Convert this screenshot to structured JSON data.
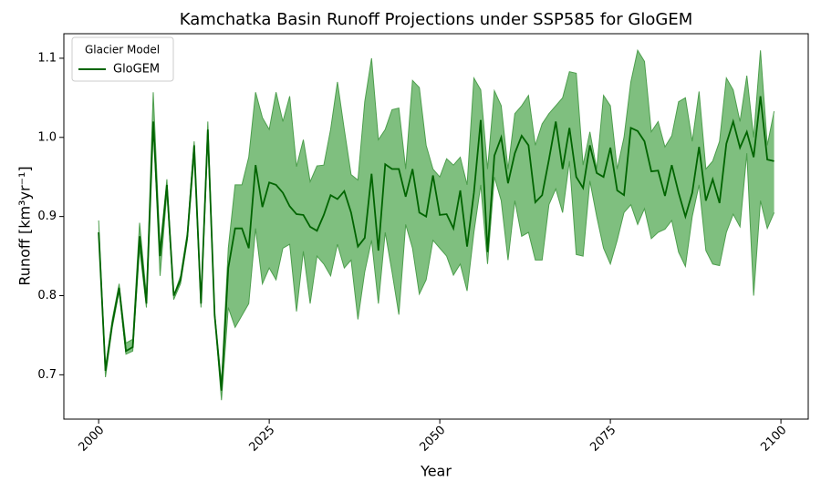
{
  "chart_data": {
    "type": "line_band",
    "title": "Kamchatka Basin Runoff Projections under SSP585 for GloGEM",
    "xlabel": "Year",
    "ylabel": "Runoff [km³yr⁻¹]",
    "legend_title": "Glacier Model",
    "legend_loc": "upper left",
    "xlim": [
      1994.9,
      2104
    ],
    "xticks": [
      2000,
      2025,
      2050,
      2075,
      2100
    ],
    "ylim": [
      0.644,
      1.131
    ],
    "yticks": [
      0.7,
      0.8,
      0.9,
      {
        "value": 1,
        "label": "1.0"
      },
      1.1
    ],
    "x": [
      2000,
      2001,
      2002,
      2003,
      2004,
      2005,
      2006,
      2007,
      2008,
      2009,
      2010,
      2011,
      2012,
      2013,
      2014,
      2015,
      2016,
      2017,
      2018,
      2019,
      2020,
      2021,
      2022,
      2023,
      2024,
      2025,
      2026,
      2027,
      2028,
      2029,
      2030,
      2031,
      2032,
      2033,
      2034,
      2035,
      2036,
      2037,
      2038,
      2039,
      2040,
      2041,
      2042,
      2043,
      2044,
      2045,
      2046,
      2047,
      2048,
      2049,
      2050,
      2051,
      2052,
      2053,
      2054,
      2055,
      2056,
      2057,
      2058,
      2059,
      2060,
      2061,
      2062,
      2063,
      2064,
      2065,
      2066,
      2067,
      2068,
      2069,
      2070,
      2071,
      2072,
      2073,
      2074,
      2075,
      2076,
      2077,
      2078,
      2079,
      2080,
      2081,
      2082,
      2083,
      2084,
      2085,
      2086,
      2087,
      2088,
      2089,
      2090,
      2091,
      2092,
      2093,
      2094,
      2095,
      2096,
      2097,
      2098,
      2099
    ],
    "series": [
      {
        "name": "GloGEM",
        "color": "#006400",
        "band_color": "#7fbf7f",
        "values": [
          0.88,
          0.705,
          0.765,
          0.81,
          0.73,
          0.735,
          0.875,
          0.79,
          1.02,
          0.85,
          0.94,
          0.8,
          0.82,
          0.875,
          0.99,
          0.79,
          1.01,
          0.775,
          0.68,
          0.835,
          0.885,
          0.885,
          0.86,
          0.965,
          0.912,
          0.943,
          0.94,
          0.93,
          0.913,
          0.903,
          0.902,
          0.887,
          0.882,
          0.902,
          0.927,
          0.922,
          0.932,
          0.905,
          0.862,
          0.873,
          0.954,
          0.857,
          0.966,
          0.96,
          0.96,
          0.925,
          0.96,
          0.905,
          0.9,
          0.952,
          0.902,
          0.903,
          0.885,
          0.933,
          0.862,
          0.93,
          1.022,
          0.855,
          0.977,
          1.0,
          0.942,
          0.98,
          1.002,
          0.99,
          0.918,
          0.927,
          0.972,
          1.02,
          0.96,
          1.012,
          0.95,
          0.936,
          0.99,
          0.955,
          0.95,
          0.987,
          0.933,
          0.927,
          1.012,
          1.008,
          0.995,
          0.957,
          0.958,
          0.926,
          0.965,
          0.93,
          0.9,
          0.93,
          0.988,
          0.92,
          0.947,
          0.917,
          0.992,
          1.02,
          0.987,
          1.007,
          0.975,
          1.052,
          0.972,
          0.97
        ],
        "upper": [
          0.895,
          0.71,
          0.77,
          0.815,
          0.74,
          0.745,
          0.892,
          0.8,
          1.057,
          0.86,
          0.947,
          0.8,
          0.825,
          0.88,
          0.995,
          0.79,
          1.02,
          0.78,
          0.69,
          0.86,
          0.94,
          0.94,
          0.975,
          1.057,
          1.025,
          1.01,
          1.057,
          1.02,
          1.052,
          0.963,
          0.997,
          0.944,
          0.964,
          0.965,
          1.01,
          1.07,
          1.01,
          0.953,
          0.946,
          1.045,
          1.1,
          0.997,
          1.01,
          1.035,
          1.037,
          0.96,
          1.072,
          1.063,
          0.99,
          0.96,
          0.95,
          0.973,
          0.965,
          0.975,
          0.94,
          1.075,
          1.06,
          0.96,
          1.059,
          1.04,
          0.96,
          1.03,
          1.04,
          1.053,
          0.99,
          1.017,
          1.03,
          1.04,
          1.05,
          1.083,
          1.081,
          0.965,
          1.007,
          0.96,
          1.053,
          1.04,
          0.96,
          1.0,
          1.07,
          1.11,
          1.096,
          1.007,
          1.02,
          0.988,
          1.002,
          1.045,
          1.05,
          0.995,
          1.058,
          0.96,
          0.97,
          0.995,
          1.075,
          1.06,
          1.02,
          1.078,
          1.0,
          1.11,
          0.99,
          1.033
        ],
        "lower": [
          0.88,
          0.697,
          0.76,
          0.805,
          0.726,
          0.73,
          0.86,
          0.785,
          1.02,
          0.825,
          0.93,
          0.795,
          0.815,
          0.87,
          0.975,
          0.785,
          0.995,
          0.775,
          0.668,
          0.785,
          0.76,
          0.775,
          0.79,
          0.885,
          0.815,
          0.835,
          0.82,
          0.86,
          0.865,
          0.78,
          0.856,
          0.79,
          0.85,
          0.84,
          0.825,
          0.865,
          0.835,
          0.845,
          0.77,
          0.83,
          0.87,
          0.79,
          0.88,
          0.83,
          0.776,
          0.89,
          0.86,
          0.802,
          0.82,
          0.87,
          0.86,
          0.85,
          0.826,
          0.84,
          0.806,
          0.88,
          0.94,
          0.84,
          0.95,
          0.92,
          0.845,
          0.92,
          0.875,
          0.88,
          0.845,
          0.845,
          0.915,
          0.935,
          0.905,
          0.97,
          0.852,
          0.85,
          0.945,
          0.9,
          0.86,
          0.84,
          0.87,
          0.905,
          0.915,
          0.89,
          0.91,
          0.872,
          0.88,
          0.884,
          0.895,
          0.855,
          0.837,
          0.9,
          0.94,
          0.857,
          0.84,
          0.838,
          0.88,
          0.903,
          0.887,
          0.98,
          0.8,
          0.92,
          0.885,
          0.905
        ]
      }
    ]
  }
}
